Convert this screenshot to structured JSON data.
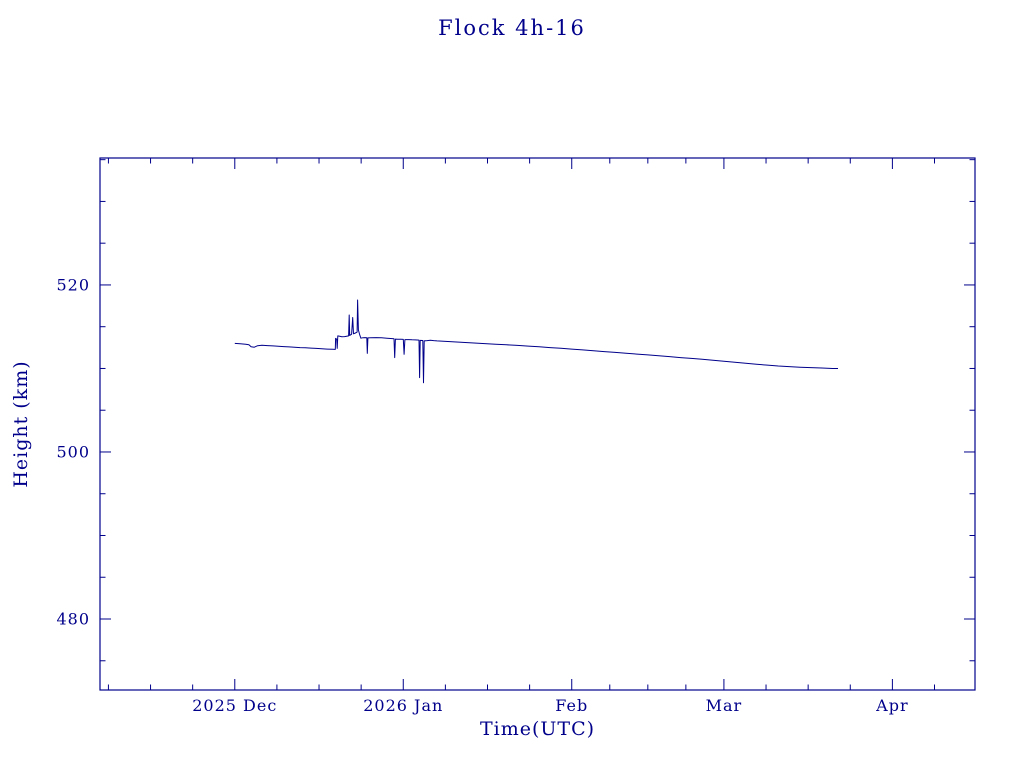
{
  "page": {
    "background": "#ffffff",
    "accent": "#00008b"
  },
  "chart_data": {
    "type": "line",
    "title": "Flock 4h-16",
    "xlabel": "Time(UTC)",
    "ylabel": "Height (km)",
    "axis_color": "#00008b",
    "line_color": "#00008b",
    "grid": false,
    "legend": "none",
    "x_unit": "days since 2025-12-01",
    "xlim": [
      -24.8,
      136.2
    ],
    "ylim": [
      471.5,
      535.2
    ],
    "x_ticks": [
      {
        "value": 0,
        "label": "2025 Dec"
      },
      {
        "value": 31,
        "label": "2026 Jan"
      },
      {
        "value": 62,
        "label": "Feb"
      },
      {
        "value": 90,
        "label": "Mar"
      },
      {
        "value": 121,
        "label": "Apr"
      }
    ],
    "y_ticks": [
      {
        "value": 480,
        "label": "480"
      },
      {
        "value": 500,
        "label": "500"
      },
      {
        "value": 520,
        "label": "520"
      }
    ],
    "y_minor_step": 5,
    "x_minor_divisions": 4,
    "series": [
      {
        "name": "height",
        "points": [
          [
            0,
            513.0
          ],
          [
            1,
            512.95
          ],
          [
            2,
            512.9
          ],
          [
            2.6,
            512.85
          ],
          [
            3,
            512.6
          ],
          [
            3.6,
            512.55
          ],
          [
            4.2,
            512.72
          ],
          [
            5,
            512.78
          ],
          [
            6,
            512.74
          ],
          [
            7,
            512.7
          ],
          [
            8,
            512.66
          ],
          [
            9,
            512.62
          ],
          [
            10,
            512.58
          ],
          [
            11,
            512.54
          ],
          [
            12,
            512.5
          ],
          [
            13,
            512.47
          ],
          [
            14,
            512.44
          ],
          [
            15,
            512.4
          ],
          [
            16,
            512.36
          ],
          [
            17,
            512.32
          ],
          [
            18,
            512.3
          ],
          [
            18.5,
            512.28
          ],
          [
            18.55,
            513.6
          ],
          [
            18.75,
            513.5
          ],
          [
            18.85,
            512.4
          ],
          [
            18.95,
            513.9
          ],
          [
            19.3,
            513.85
          ],
          [
            19.7,
            513.8
          ],
          [
            20.2,
            513.82
          ],
          [
            20.7,
            513.88
          ],
          [
            20.95,
            513.9
          ],
          [
            21.05,
            516.4
          ],
          [
            21.15,
            513.95
          ],
          [
            21.5,
            514.1
          ],
          [
            21.7,
            516.1
          ],
          [
            21.85,
            514.15
          ],
          [
            22.2,
            514.25
          ],
          [
            22.5,
            514.35
          ],
          [
            22.6,
            518.2
          ],
          [
            22.75,
            514.6
          ],
          [
            23.0,
            514.0
          ],
          [
            23.2,
            513.62
          ],
          [
            23.6,
            513.68
          ],
          [
            24,
            513.7
          ],
          [
            24.3,
            513.68
          ],
          [
            24.38,
            511.8
          ],
          [
            24.5,
            513.66
          ],
          [
            25,
            513.68
          ],
          [
            26,
            513.7
          ],
          [
            27,
            513.68
          ],
          [
            28,
            513.62
          ],
          [
            29,
            513.58
          ],
          [
            29.3,
            513.55
          ],
          [
            29.42,
            511.3
          ],
          [
            29.55,
            513.52
          ],
          [
            30,
            513.5
          ],
          [
            30.6,
            513.5
          ],
          [
            31,
            513.48
          ],
          [
            31.15,
            511.7
          ],
          [
            31.3,
            513.46
          ],
          [
            32,
            513.45
          ],
          [
            32.6,
            513.43
          ],
          [
            33.2,
            513.42
          ],
          [
            33.9,
            513.4
          ],
          [
            34.0,
            508.9
          ],
          [
            34.12,
            513.36
          ],
          [
            34.6,
            513.35
          ],
          [
            34.72,
            508.3
          ],
          [
            34.85,
            513.3
          ],
          [
            35.4,
            513.34
          ],
          [
            36,
            513.38
          ],
          [
            36.6,
            513.34
          ],
          [
            37.2,
            513.3
          ],
          [
            38,
            513.28
          ],
          [
            40,
            513.2
          ],
          [
            42,
            513.12
          ],
          [
            44,
            513.05
          ],
          [
            46,
            512.98
          ],
          [
            48,
            512.9
          ],
          [
            50,
            512.83
          ],
          [
            52,
            512.76
          ],
          [
            54,
            512.68
          ],
          [
            56,
            512.6
          ],
          [
            58,
            512.5
          ],
          [
            60,
            512.42
          ],
          [
            62,
            512.32
          ],
          [
            64,
            512.22
          ],
          [
            66,
            512.12
          ],
          [
            68,
            512.02
          ],
          [
            70,
            511.92
          ],
          [
            72,
            511.82
          ],
          [
            74,
            511.72
          ],
          [
            76,
            511.62
          ],
          [
            78,
            511.52
          ],
          [
            80,
            511.42
          ],
          [
            82,
            511.3
          ],
          [
            84,
            511.2
          ],
          [
            86,
            511.1
          ],
          [
            88,
            510.98
          ],
          [
            90,
            510.86
          ],
          [
            92,
            510.74
          ],
          [
            94,
            510.62
          ],
          [
            96,
            510.5
          ],
          [
            98,
            510.4
          ],
          [
            100,
            510.3
          ],
          [
            102,
            510.22
          ],
          [
            104,
            510.15
          ],
          [
            106,
            510.1
          ],
          [
            108,
            510.05
          ],
          [
            110,
            510.0
          ],
          [
            111,
            510.0
          ]
        ]
      }
    ]
  }
}
